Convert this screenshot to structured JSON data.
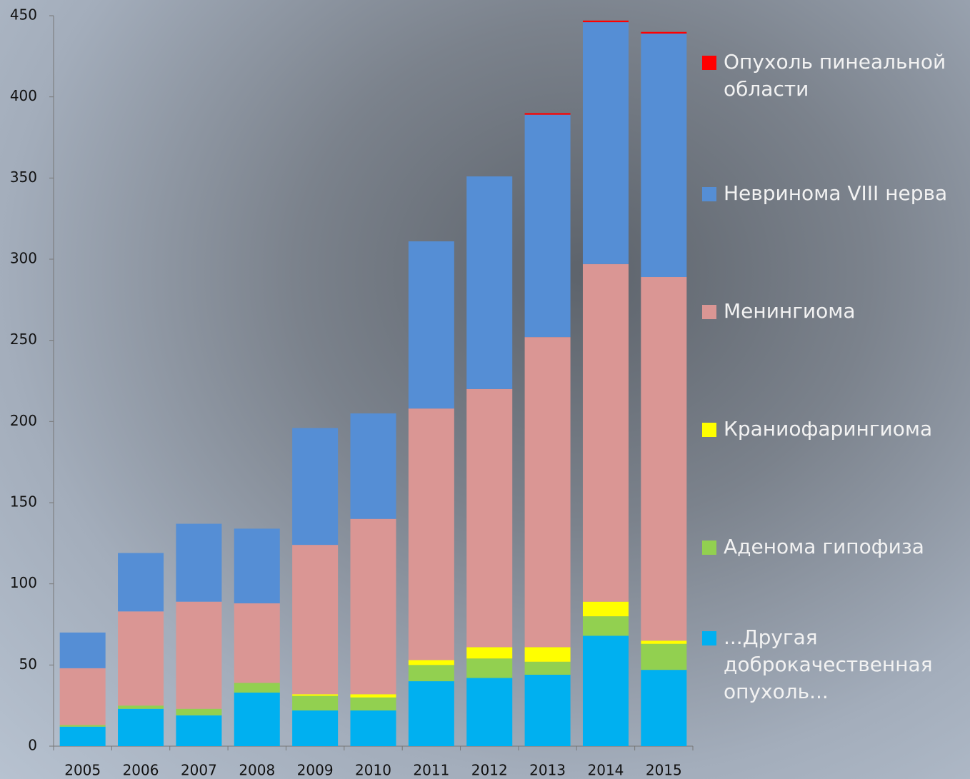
{
  "chart_data": {
    "type": "stacked-bar",
    "categories": [
      "2005",
      "2006",
      "2007",
      "2008",
      "2009",
      "2010",
      "2011",
      "2012",
      "2013",
      "2014",
      "2015"
    ],
    "series": [
      {
        "name": "...Другая доброкачественная опухоль...",
        "color": "#00b0f0",
        "values": [
          12,
          23,
          19,
          33,
          22,
          22,
          40,
          42,
          44,
          68,
          47
        ]
      },
      {
        "name": "Аденома гипофиза",
        "color": "#92d050",
        "values": [
          1,
          2,
          4,
          6,
          9,
          8,
          10,
          12,
          8,
          12,
          16
        ]
      },
      {
        "name": "Краниофарингиома",
        "color": "#ffff00",
        "values": [
          0,
          0,
          0,
          0,
          1,
          2,
          3,
          7,
          9,
          9,
          2
        ]
      },
      {
        "name": "Менингиома",
        "color": "#da9694",
        "values": [
          35,
          58,
          66,
          49,
          92,
          108,
          155,
          159,
          191,
          208,
          224
        ]
      },
      {
        "name": "Невринома VIII нерва",
        "color": "#558ed5",
        "values": [
          22,
          36,
          48,
          46,
          72,
          65,
          103,
          131,
          137,
          149,
          150
        ]
      },
      {
        "name": "Опухоль пинеальной области",
        "color": "#ff0000",
        "values": [
          0,
          0,
          0,
          0,
          0,
          0,
          0,
          0,
          1,
          1,
          1
        ]
      }
    ],
    "ylim": [
      0,
      450
    ],
    "yticks": [
      0,
      50,
      100,
      150,
      200,
      250,
      300,
      350,
      400,
      450
    ],
    "grid": false
  }
}
